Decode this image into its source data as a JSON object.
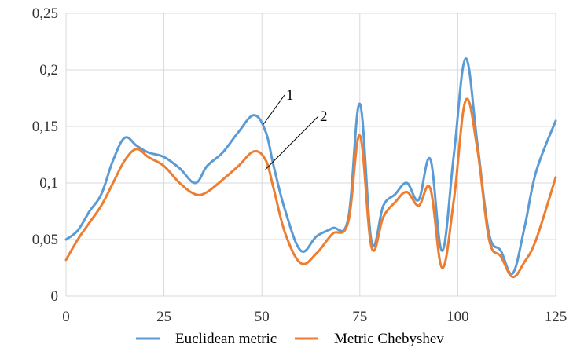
{
  "chart_data": {
    "type": "line",
    "xlim": [
      0,
      125
    ],
    "ylim": [
      0,
      0.25
    ],
    "grid": true,
    "legend_position": "bottom",
    "x_tick_labels": [
      "0",
      "25",
      "50",
      "75",
      "100",
      "125"
    ],
    "x_tick_values": [
      0,
      25,
      50,
      75,
      100,
      125
    ],
    "y_tick_labels": [
      "0",
      "0,05",
      "0,1",
      "0,15",
      "0,2",
      "0,25"
    ],
    "y_tick_values": [
      0,
      0.05,
      0.1,
      0.15,
      0.2,
      0.25
    ],
    "series": [
      {
        "name": "Euclidean metric",
        "color": "#5b9bd5",
        "points": [
          [
            0,
            0.05
          ],
          [
            3,
            0.058
          ],
          [
            6,
            0.075
          ],
          [
            9,
            0.09
          ],
          [
            12,
            0.12
          ],
          [
            15,
            0.14
          ],
          [
            18,
            0.133
          ],
          [
            21,
            0.127
          ],
          [
            25,
            0.123
          ],
          [
            29,
            0.113
          ],
          [
            33,
            0.1
          ],
          [
            36,
            0.115
          ],
          [
            40,
            0.127
          ],
          [
            44,
            0.145
          ],
          [
            48,
            0.16
          ],
          [
            51,
            0.145
          ],
          [
            53,
            0.115
          ],
          [
            56,
            0.075
          ],
          [
            60,
            0.04
          ],
          [
            64,
            0.053
          ],
          [
            68,
            0.06
          ],
          [
            72,
            0.068
          ],
          [
            75,
            0.17
          ],
          [
            78,
            0.048
          ],
          [
            81,
            0.08
          ],
          [
            84,
            0.09
          ],
          [
            87,
            0.1
          ],
          [
            90,
            0.085
          ],
          [
            93,
            0.121
          ],
          [
            96,
            0.04
          ],
          [
            99,
            0.125
          ],
          [
            102,
            0.21
          ],
          [
            105,
            0.135
          ],
          [
            108,
            0.055
          ],
          [
            111,
            0.04
          ],
          [
            114,
            0.02
          ],
          [
            117,
            0.06
          ],
          [
            120,
            0.11
          ],
          [
            125,
            0.155
          ]
        ]
      },
      {
        "name": "Metric Chebyshev",
        "color": "#ed7d31",
        "points": [
          [
            0,
            0.032
          ],
          [
            3,
            0.05
          ],
          [
            6,
            0.065
          ],
          [
            9,
            0.08
          ],
          [
            12,
            0.1
          ],
          [
            15,
            0.12
          ],
          [
            18,
            0.13
          ],
          [
            21,
            0.123
          ],
          [
            25,
            0.115
          ],
          [
            29,
            0.1
          ],
          [
            33,
            0.09
          ],
          [
            36,
            0.092
          ],
          [
            40,
            0.103
          ],
          [
            44,
            0.115
          ],
          [
            48,
            0.128
          ],
          [
            51,
            0.12
          ],
          [
            53,
            0.095
          ],
          [
            56,
            0.055
          ],
          [
            60,
            0.029
          ],
          [
            64,
            0.038
          ],
          [
            68,
            0.055
          ],
          [
            72,
            0.065
          ],
          [
            75,
            0.142
          ],
          [
            78,
            0.043
          ],
          [
            81,
            0.07
          ],
          [
            84,
            0.083
          ],
          [
            87,
            0.092
          ],
          [
            90,
            0.08
          ],
          [
            93,
            0.095
          ],
          [
            96,
            0.025
          ],
          [
            99,
            0.085
          ],
          [
            102,
            0.173
          ],
          [
            105,
            0.13
          ],
          [
            108,
            0.05
          ],
          [
            111,
            0.035
          ],
          [
            114,
            0.017
          ],
          [
            117,
            0.03
          ],
          [
            120,
            0.05
          ],
          [
            125,
            0.105
          ]
        ]
      }
    ],
    "annotations": [
      {
        "text": "1",
        "x": 50,
        "y": 0.152
      },
      {
        "text": "2",
        "x": 50.5,
        "y": 0.112
      }
    ]
  }
}
